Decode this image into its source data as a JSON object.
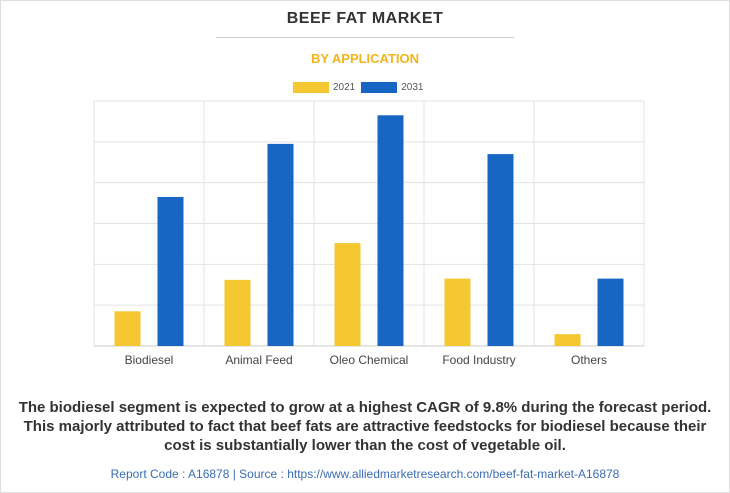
{
  "header": {
    "title": "BEEF FAT MARKET",
    "subtitle": "BY APPLICATION"
  },
  "colors": {
    "series_2021": "#f5c730",
    "series_2031": "#1866c4",
    "subtitle": "#f4b41a",
    "grid": "#e3e3e3",
    "footer_text": "#3a6db3"
  },
  "chart_data": {
    "type": "bar",
    "categories": [
      "Biodiesel",
      "Animal Feed",
      "Oleo Chemical",
      "Food Industry",
      "Others"
    ],
    "series": [
      {
        "name": "2021",
        "values": [
          8.5,
          16.2,
          25.2,
          16.5,
          2.9
        ]
      },
      {
        "name": "2031",
        "values": [
          36.5,
          49.5,
          56.5,
          47.0,
          16.5
        ]
      }
    ],
    "ylim": [
      0,
      60
    ],
    "y_gridlines": [
      0,
      10,
      20,
      30,
      40,
      50,
      60
    ],
    "y_tick_labels_visible": false,
    "grid": true,
    "legend_position": "top-center",
    "title": "",
    "xlabel": "",
    "ylabel": ""
  },
  "caption": "The biodiesel segment is expected to grow at a highest CAGR of 9.8% during the forecast period. This majorly attributed to fact that beef fats are attractive feedstocks for biodiesel because their cost is substantially lower than the cost of vegetable oil.",
  "footer": {
    "report_line": "Report Code : A16878  |  Source : https://www.alliedmarketresearch.com/beef-fat-market-A16878"
  }
}
